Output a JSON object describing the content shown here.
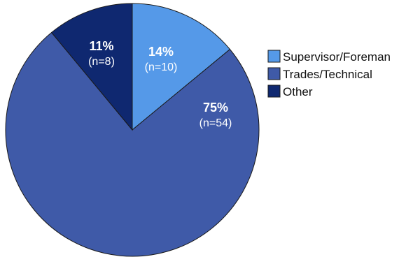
{
  "chart_data": {
    "type": "pie",
    "categories": [
      "Supervisor/Foreman",
      "Trades/Technical",
      "Other"
    ],
    "values": [
      14,
      75,
      11
    ],
    "counts": [
      10,
      54,
      8
    ],
    "percent_labels": [
      "14%",
      "75%",
      "11%"
    ],
    "count_labels": [
      "(n=10)",
      "(n=54)",
      "(n=8)"
    ],
    "colors": [
      "#5599e8",
      "#3f5aa8",
      "#0f2870"
    ],
    "title": "",
    "legend": {
      "placement": "right",
      "entries": [
        "Supervisor/Foreman",
        "Trades/Technical",
        "Other"
      ]
    }
  }
}
